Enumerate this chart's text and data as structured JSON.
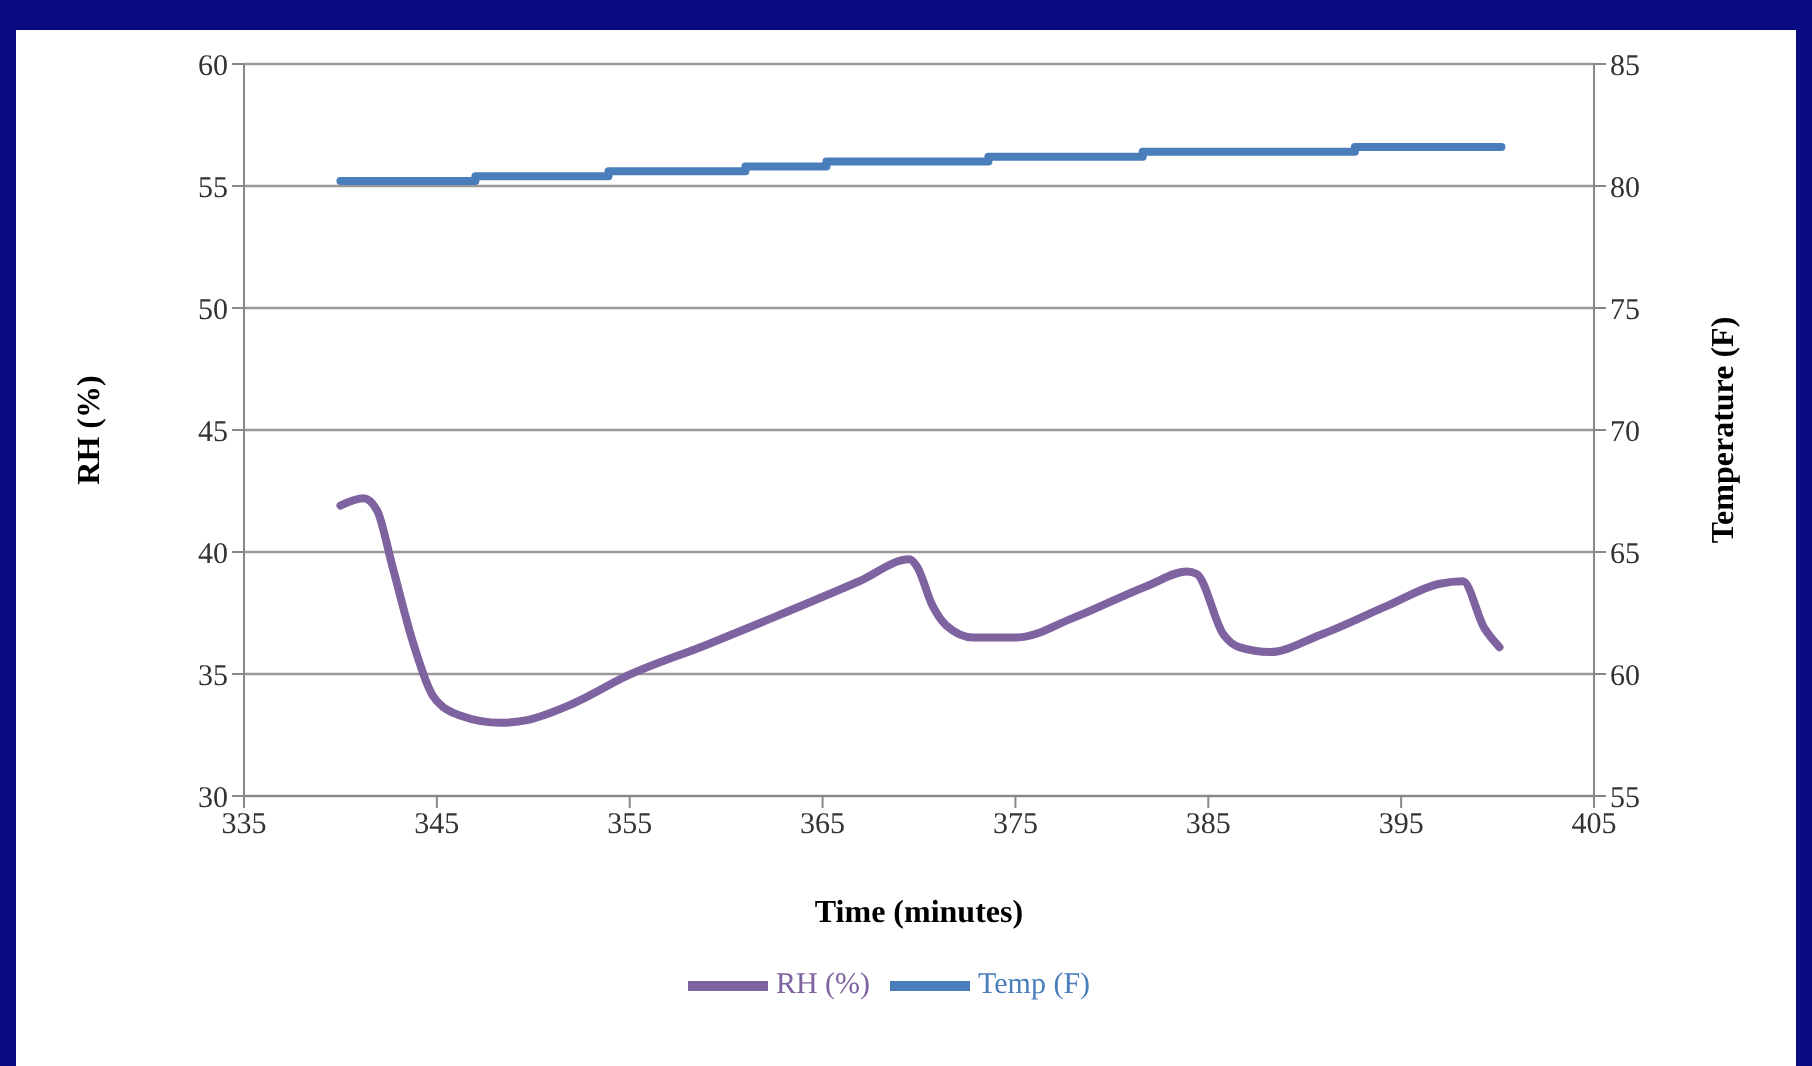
{
  "chart_data": {
    "type": "line",
    "xlabel": "Time (minutes)",
    "ylabel": "RH (%)",
    "y2label": "Temperature (F)",
    "xlim": [
      335,
      405
    ],
    "xticks": [
      335,
      345,
      355,
      365,
      375,
      385,
      395,
      405
    ],
    "ylim": [
      30,
      60
    ],
    "yticks": [
      30,
      35,
      40,
      45,
      50,
      55,
      60
    ],
    "y2lim": [
      55,
      85
    ],
    "y2ticks": [
      55,
      60,
      65,
      70,
      75,
      80,
      85
    ],
    "grid": "y",
    "legend": "bottom",
    "marker": "none",
    "line_style": "solid",
    "series": [
      {
        "name": "RH (%)",
        "color": "#7f62a0",
        "x": [
          340.0,
          341.2,
          341.9,
          342.7,
          343.8,
          344.8,
          346.2,
          348.3,
          349.6,
          352.1,
          354.8,
          359.0,
          362.4,
          366.9,
          369.5,
          369.9,
          370.7,
          371.4,
          372.8,
          375.1,
          378.0,
          381.8,
          383.9,
          384.4,
          385.8,
          386.6,
          388.2,
          390.8,
          394.3,
          397.0,
          398.2,
          399.3,
          400.1
        ],
        "values": [
          41.9,
          42.2,
          41.7,
          39.4,
          36.2,
          34.1,
          33.3,
          33.0,
          33.1,
          33.8,
          34.9,
          36.2,
          37.3,
          38.8,
          39.7,
          39.4,
          37.8,
          37.0,
          36.5,
          36.5,
          37.3,
          38.6,
          39.2,
          39.1,
          36.6,
          36.1,
          35.9,
          36.6,
          37.8,
          38.7,
          38.8,
          36.9,
          36.1
        ]
      },
      {
        "name": "Temp (F)",
        "type": "step",
        "axis": "y2",
        "color": "#4a7ebb",
        "x": [
          340.0,
          347.0,
          353.9,
          361.0,
          365.2,
          373.6,
          381.6,
          392.6,
          400.2
        ],
        "values": [
          80.2,
          80.4,
          80.6,
          80.8,
          81.0,
          81.2,
          81.4,
          81.6,
          81.6
        ]
      }
    ]
  }
}
